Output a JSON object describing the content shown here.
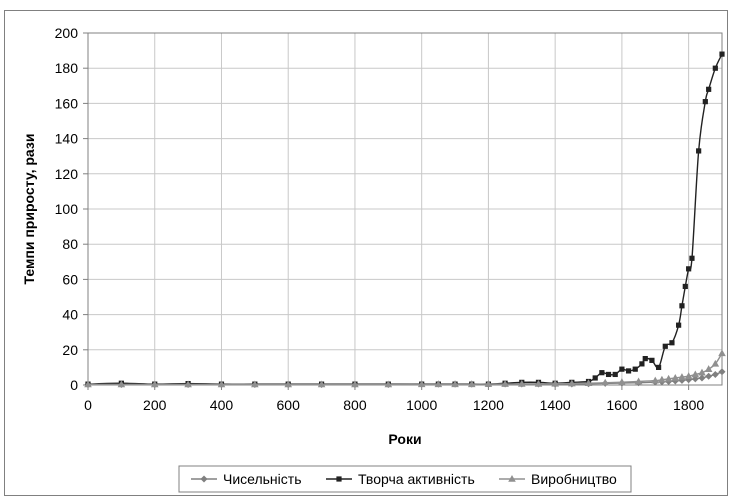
{
  "chart_data": {
    "type": "line",
    "xlabel": "Роки",
    "ylabel": "Темпи приросту, рази",
    "xlim": [
      0,
      1900
    ],
    "ylim": [
      0,
      200
    ],
    "x_ticks": [
      0,
      200,
      400,
      600,
      800,
      1000,
      1200,
      1400,
      1600,
      1800
    ],
    "y_ticks": [
      0,
      20,
      40,
      60,
      80,
      100,
      120,
      140,
      160,
      180,
      200
    ],
    "grid": true,
    "legend_position": "bottom",
    "series": [
      {
        "name": "Чисельність",
        "color": "#808080",
        "marker": "diamond",
        "points": [
          [
            0,
            0.3
          ],
          [
            100,
            0.3
          ],
          [
            200,
            0.3
          ],
          [
            300,
            0.3
          ],
          [
            400,
            0.3
          ],
          [
            500,
            0.3
          ],
          [
            600,
            0.3
          ],
          [
            700,
            0.3
          ],
          [
            800,
            0.3
          ],
          [
            900,
            0.3
          ],
          [
            1000,
            0.5
          ],
          [
            1050,
            0.5
          ],
          [
            1100,
            0.5
          ],
          [
            1150,
            0.5
          ],
          [
            1200,
            0.5
          ],
          [
            1250,
            0.6
          ],
          [
            1300,
            0.6
          ],
          [
            1350,
            0.6
          ],
          [
            1400,
            0.5
          ],
          [
            1450,
            0.6
          ],
          [
            1500,
            0.7
          ],
          [
            1550,
            0.9
          ],
          [
            1600,
            1.1
          ],
          [
            1650,
            1.3
          ],
          [
            1700,
            1.6
          ],
          [
            1720,
            1.8
          ],
          [
            1740,
            2
          ],
          [
            1760,
            2.3
          ],
          [
            1780,
            2.6
          ],
          [
            1800,
            3
          ],
          [
            1820,
            3.5
          ],
          [
            1840,
            4
          ],
          [
            1860,
            5
          ],
          [
            1880,
            6
          ],
          [
            1900,
            7.5
          ]
        ]
      },
      {
        "name": "Творча активність",
        "color": "#222222",
        "marker": "square",
        "points": [
          [
            0,
            0.5
          ],
          [
            100,
            1
          ],
          [
            200,
            0.5
          ],
          [
            300,
            0.8
          ],
          [
            400,
            0.5
          ],
          [
            500,
            0.5
          ],
          [
            600,
            0.5
          ],
          [
            700,
            0.5
          ],
          [
            800,
            0.5
          ],
          [
            900,
            0.5
          ],
          [
            1000,
            0.5
          ],
          [
            1050,
            0.5
          ],
          [
            1100,
            0.5
          ],
          [
            1150,
            0.5
          ],
          [
            1200,
            0.5
          ],
          [
            1250,
            1
          ],
          [
            1300,
            1.5
          ],
          [
            1350,
            1.5
          ],
          [
            1400,
            1
          ],
          [
            1450,
            1.5
          ],
          [
            1500,
            2
          ],
          [
            1520,
            4
          ],
          [
            1540,
            7
          ],
          [
            1560,
            6
          ],
          [
            1580,
            6
          ],
          [
            1600,
            9
          ],
          [
            1620,
            8
          ],
          [
            1640,
            9
          ],
          [
            1660,
            12
          ],
          [
            1670,
            15
          ],
          [
            1690,
            14
          ],
          [
            1710,
            10
          ],
          [
            1730,
            22
          ],
          [
            1750,
            24
          ],
          [
            1770,
            34
          ],
          [
            1780,
            45
          ],
          [
            1790,
            56
          ],
          [
            1800,
            66
          ],
          [
            1810,
            72
          ],
          [
            1830,
            133
          ],
          [
            1850,
            161
          ],
          [
            1860,
            168
          ],
          [
            1880,
            180
          ],
          [
            1900,
            188
          ]
        ]
      },
      {
        "name": "Виробництво",
        "color": "#909090",
        "marker": "triangle",
        "points": [
          [
            0,
            0.3
          ],
          [
            100,
            0.3
          ],
          [
            200,
            0.3
          ],
          [
            300,
            0.3
          ],
          [
            400,
            0.3
          ],
          [
            500,
            0.3
          ],
          [
            600,
            0.3
          ],
          [
            700,
            0.3
          ],
          [
            800,
            0.3
          ],
          [
            900,
            0.3
          ],
          [
            1000,
            0.4
          ],
          [
            1050,
            0.4
          ],
          [
            1100,
            0.4
          ],
          [
            1150,
            0.4
          ],
          [
            1200,
            0.5
          ],
          [
            1250,
            0.5
          ],
          [
            1300,
            0.6
          ],
          [
            1350,
            0.6
          ],
          [
            1400,
            0.7
          ],
          [
            1450,
            0.8
          ],
          [
            1500,
            1
          ],
          [
            1550,
            1.3
          ],
          [
            1600,
            1.6
          ],
          [
            1650,
            2
          ],
          [
            1700,
            2.5
          ],
          [
            1720,
            3
          ],
          [
            1740,
            3.5
          ],
          [
            1760,
            4
          ],
          [
            1780,
            4.5
          ],
          [
            1800,
            5
          ],
          [
            1820,
            6
          ],
          [
            1840,
            7
          ],
          [
            1860,
            9
          ],
          [
            1880,
            12
          ],
          [
            1900,
            18
          ]
        ]
      }
    ]
  }
}
